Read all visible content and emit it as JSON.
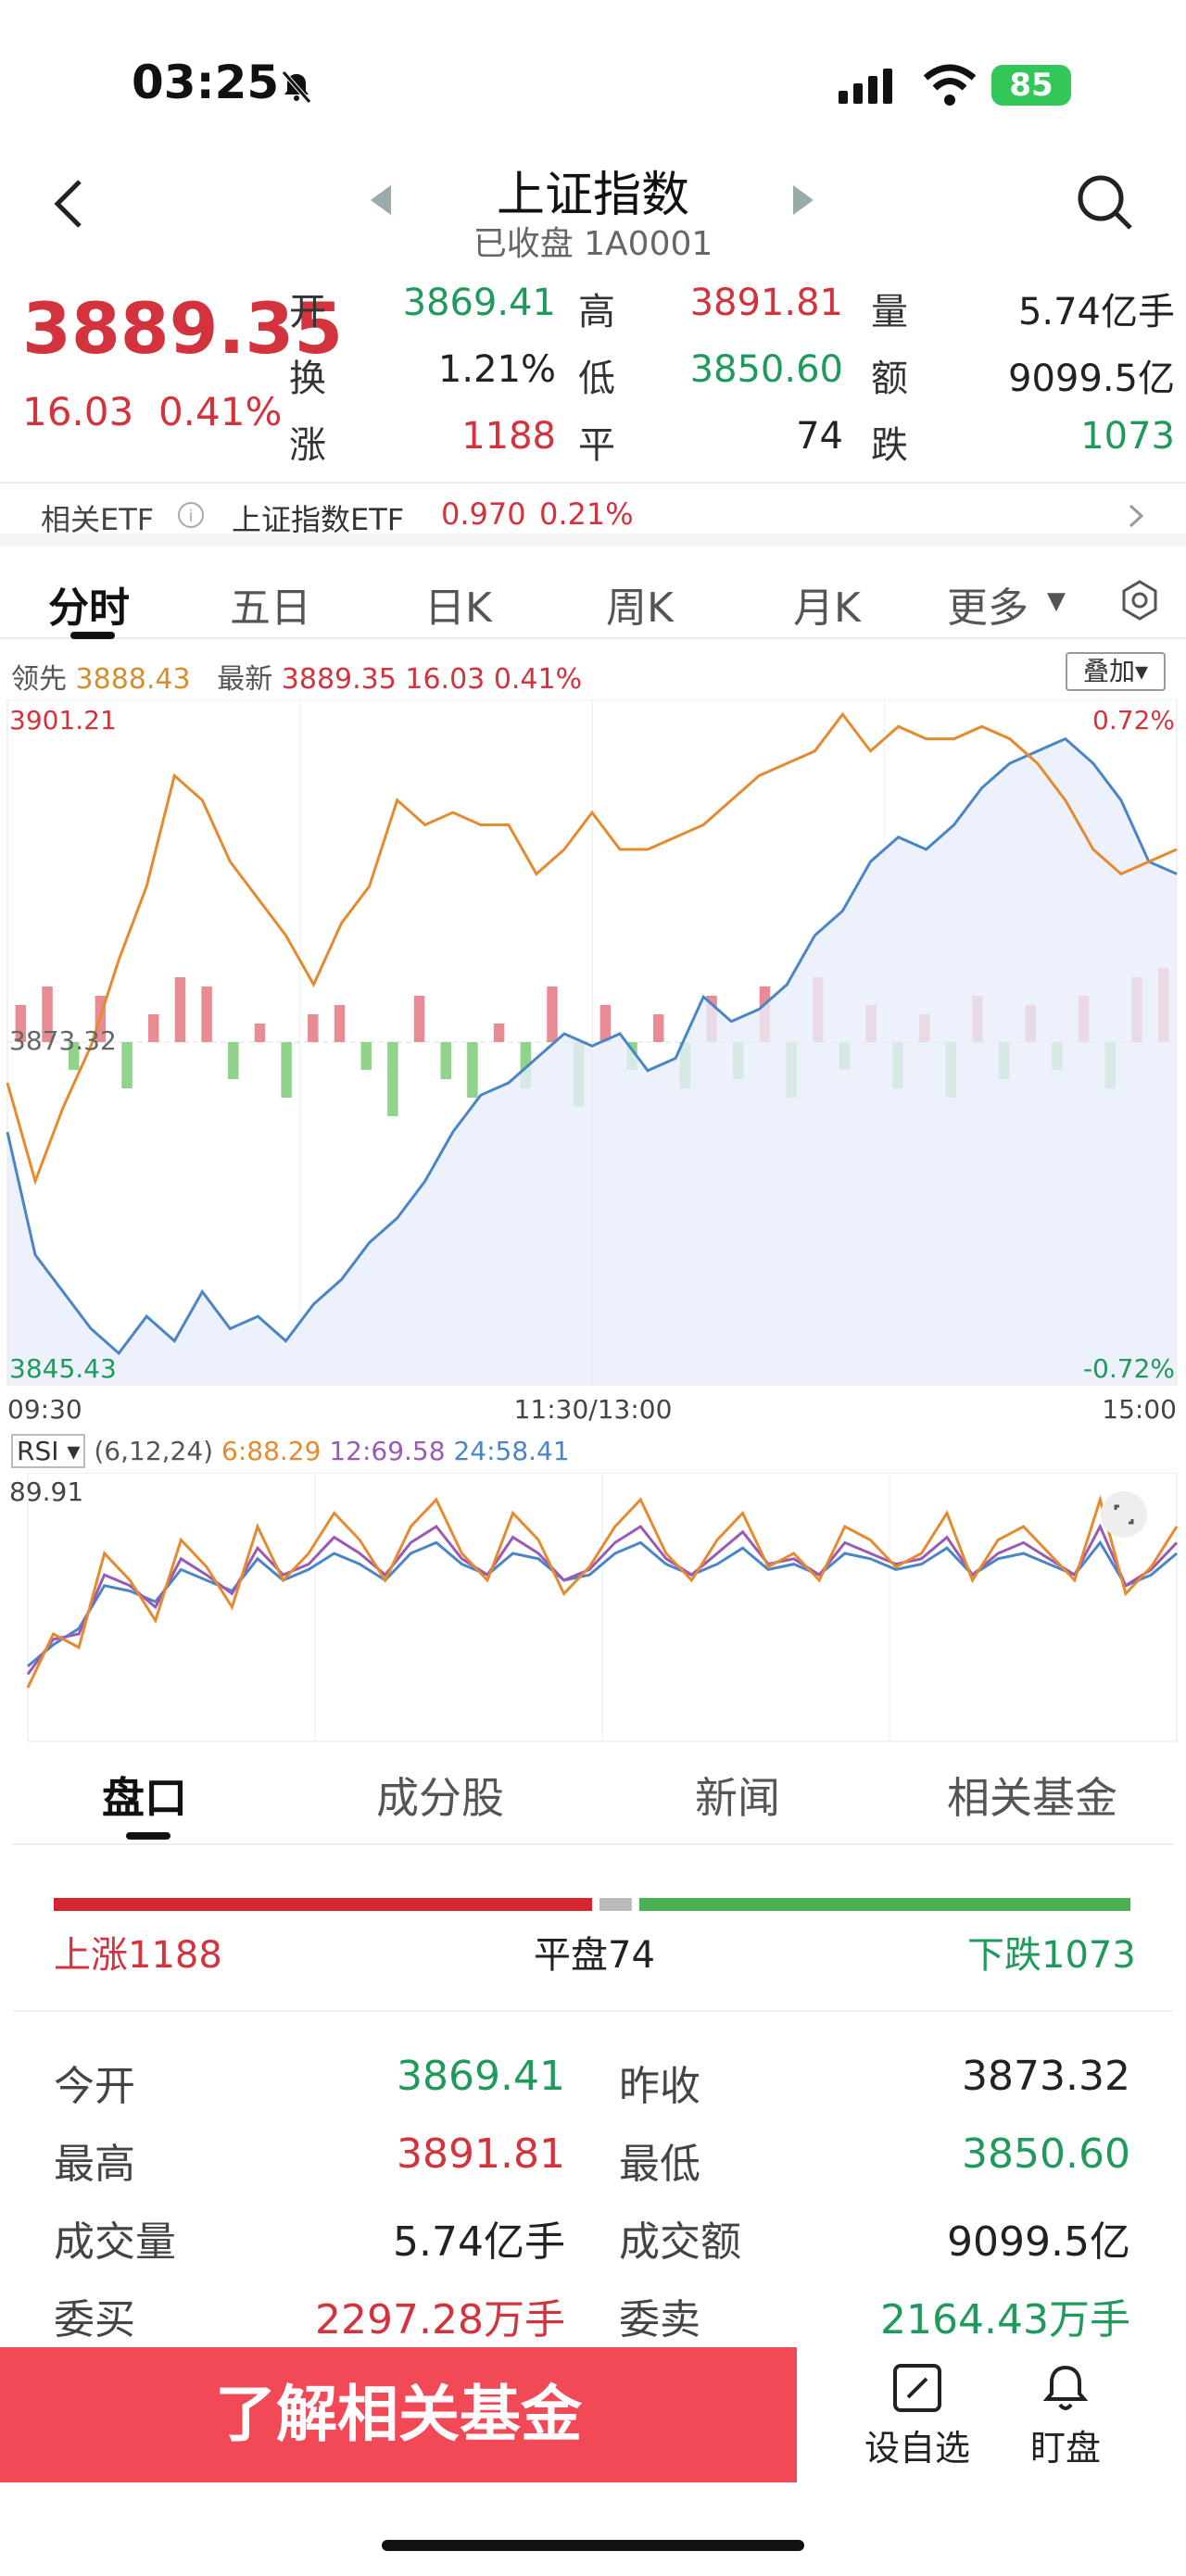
{
  "status": {
    "time": "03:25",
    "battery": "85"
  },
  "header": {
    "title": "上证指数",
    "subtitle": "已收盘 1A0001"
  },
  "quote": {
    "price": "3889.35",
    "change": "16.03",
    "change_pct": "0.41%",
    "rows": [
      [
        {
          "l": "开",
          "v": "3869.41"
        },
        {
          "l": "高",
          "v": "3891.81"
        },
        {
          "l": "量",
          "v": "5.74亿手"
        }
      ],
      [
        {
          "l": "换",
          "v": "1.21%"
        },
        {
          "l": "低",
          "v": "3850.60"
        },
        {
          "l": "额",
          "v": "9099.5亿"
        }
      ],
      [
        {
          "l": "涨",
          "v": "1188"
        },
        {
          "l": "平",
          "v": "74"
        },
        {
          "l": "跌",
          "v": "1073"
        }
      ]
    ]
  },
  "etf": {
    "label": "相关ETF",
    "name": "上证指数ETF",
    "price": "0.970",
    "pct": "0.21%"
  },
  "tabs": [
    "分时",
    "五日",
    "日K",
    "周K",
    "月K",
    "更多"
  ],
  "legend": {
    "lead_label": "领先",
    "lead_value": "3888.43",
    "latest_label": "最新",
    "latest_value": "3889.35",
    "latest_change": "16.03",
    "latest_pct": "0.41%",
    "overlay": "叠加"
  },
  "chart_data": {
    "type": "line",
    "ylim": [
      3845.43,
      3901.21
    ],
    "prev_close": "3873.32",
    "y_top": "3901.21",
    "y_bottom": "3845.43",
    "pct_top": "0.72%",
    "pct_bottom": "-0.72%",
    "x_labels": [
      "09:30",
      "11:30/13:00",
      "15:00"
    ],
    "series": [
      {
        "name": "最新",
        "color": "#4a86c5",
        "values": [
          3866,
          3856,
          3853,
          3850,
          3848,
          3851,
          3849,
          3853,
          3850,
          3851,
          3849,
          3852,
          3854,
          3857,
          3859,
          3862,
          3866,
          3869,
          3870,
          3872,
          3874,
          3873,
          3874,
          3871,
          3872,
          3877,
          3875,
          3876,
          3878,
          3882,
          3884,
          3888,
          3890,
          3889,
          3891,
          3894,
          3896,
          3897,
          3898,
          3896,
          3893,
          3888,
          3887
        ]
      },
      {
        "name": "领先",
        "color": "#e58a2e",
        "values": [
          3870,
          3862,
          3868,
          3873,
          3880,
          3886,
          3895,
          3893,
          3888,
          3885,
          3882,
          3878,
          3883,
          3886,
          3893,
          3891,
          3892,
          3891,
          3891,
          3887,
          3889,
          3892,
          3889,
          3889,
          3890,
          3891,
          3893,
          3895,
          3896,
          3897,
          3900,
          3897,
          3899,
          3898,
          3898,
          3899,
          3898,
          3896,
          3893,
          3889,
          3887,
          3888,
          3889
        ]
      }
    ]
  },
  "volume": {
    "values": [
      4,
      6,
      -3,
      5,
      -5,
      3,
      7,
      6,
      -4,
      2,
      -6,
      3,
      4,
      -3,
      -8,
      5,
      -4,
      -6,
      2,
      -5,
      6,
      -7,
      4,
      -3,
      3,
      -5,
      5,
      -4,
      6,
      -6,
      7,
      -3,
      4,
      -5,
      3,
      -6,
      5,
      -4,
      4,
      -3,
      5,
      -5,
      7,
      8
    ]
  },
  "rsi": {
    "label": "RSI",
    "params": "(6,12,24)",
    "r6": "6:88.29",
    "r12": "12:69.58",
    "r24": "24:58.41",
    "top": "89.91",
    "colors": [
      "#e58a2e",
      "#9b59b6",
      "#4a86c5"
    ],
    "values6": [
      20,
      40,
      35,
      70,
      60,
      45,
      75,
      65,
      50,
      80,
      60,
      70,
      85,
      75,
      60,
      80,
      90,
      70,
      60,
      85,
      75,
      55,
      65,
      80,
      90,
      70,
      60,
      75,
      85,
      65,
      70,
      60,
      80,
      75,
      65,
      70,
      85,
      60,
      75,
      80,
      70,
      60,
      90,
      55,
      65,
      80
    ],
    "values12": [
      25,
      38,
      40,
      62,
      58,
      50,
      68,
      62,
      55,
      72,
      62,
      66,
      76,
      70,
      62,
      74,
      80,
      68,
      62,
      76,
      70,
      60,
      64,
      74,
      80,
      68,
      62,
      70,
      78,
      66,
      68,
      62,
      74,
      70,
      66,
      68,
      76,
      62,
      70,
      74,
      68,
      62,
      80,
      58,
      64,
      74
    ],
    "values24": [
      28,
      36,
      42,
      58,
      56,
      52,
      64,
      60,
      56,
      68,
      60,
      64,
      70,
      66,
      60,
      70,
      74,
      66,
      62,
      70,
      68,
      60,
      62,
      70,
      74,
      66,
      62,
      66,
      72,
      64,
      66,
      62,
      70,
      68,
      64,
      66,
      72,
      62,
      68,
      70,
      66,
      62,
      74,
      58,
      62,
      70
    ]
  },
  "lower_tabs": [
    "盘口",
    "成分股",
    "新闻",
    "相关基金"
  ],
  "breadth": {
    "up": "上涨1188",
    "flat": "平盘74",
    "down": "下跌1073",
    "up_frac": 0.5,
    "flat_frac": 0.03,
    "down_frac": 0.47
  },
  "summary": [
    [
      {
        "l": "今开",
        "v": "3869.41",
        "c": "green"
      },
      {
        "l": "昨收",
        "v": "3873.32",
        "c": "dark"
      }
    ],
    [
      {
        "l": "最高",
        "v": "3891.81",
        "c": "red"
      },
      {
        "l": "最低",
        "v": "3850.60",
        "c": "green"
      }
    ],
    [
      {
        "l": "成交量",
        "v": "5.74亿手",
        "c": "dark"
      },
      {
        "l": "成交额",
        "v": "9099.5亿",
        "c": "dark"
      }
    ],
    [
      {
        "l": "委买",
        "v": "2297.28万手",
        "c": "red"
      },
      {
        "l": "委卖",
        "v": "2164.43万手",
        "c": "green"
      }
    ]
  ],
  "bottom": {
    "cta": "了解相关基金",
    "add": "设自选",
    "watch": "盯盘"
  }
}
